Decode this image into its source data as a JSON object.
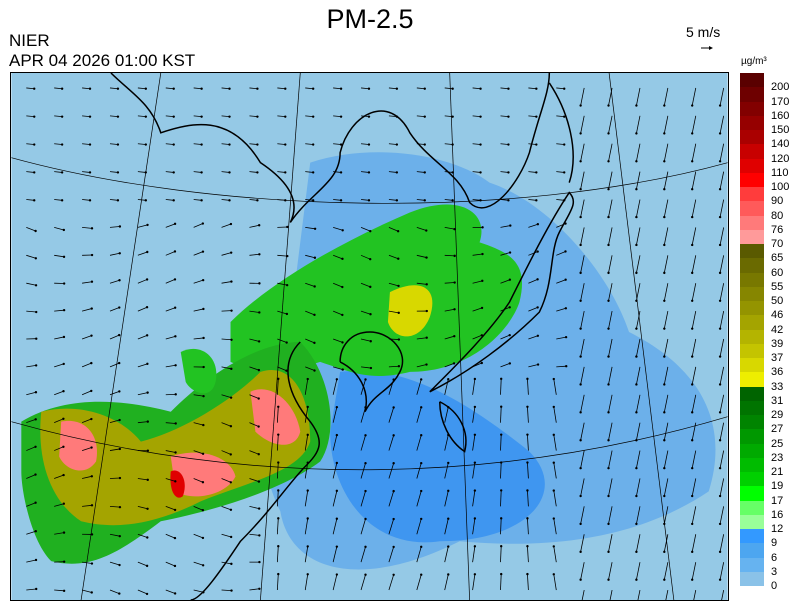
{
  "header": {
    "title": "PM-2.5",
    "organization": "NIER",
    "timestamp": "APR 04 2026 01:00 KST",
    "wind_scale_label": "5 m/s"
  },
  "legend": {
    "unit": "µg/m³",
    "labels": [
      "200",
      "170",
      "160",
      "150",
      "140",
      "120",
      "110",
      "100",
      "90",
      "80",
      "76",
      "70",
      "65",
      "60",
      "55",
      "50",
      "46",
      "42",
      "39",
      "37",
      "36",
      "33",
      "31",
      "29",
      "27",
      "25",
      "23",
      "21",
      "19",
      "17",
      "16",
      "12",
      "9",
      "6",
      "3",
      "0"
    ],
    "colors": [
      "#5a0000",
      "#6e0000",
      "#820000",
      "#960000",
      "#aa0000",
      "#c80000",
      "#e00000",
      "#ff0000",
      "#ff3c3c",
      "#ff5a5a",
      "#ff7a7a",
      "#ff9a9a",
      "#5a5a00",
      "#6a6a00",
      "#787800",
      "#868600",
      "#949400",
      "#a4a400",
      "#b4b400",
      "#c4c400",
      "#d8d800",
      "#eeee00",
      "#006400",
      "#007400",
      "#008400",
      "#009800",
      "#00aa00",
      "#00bc00",
      "#00d000",
      "#00ff00",
      "#66ff66",
      "#99ff99",
      "#3399ff",
      "#4da6f0",
      "#66b3f0",
      "#8ac2e8"
    ]
  },
  "map": {
    "background_color": "#95c9e6"
  }
}
